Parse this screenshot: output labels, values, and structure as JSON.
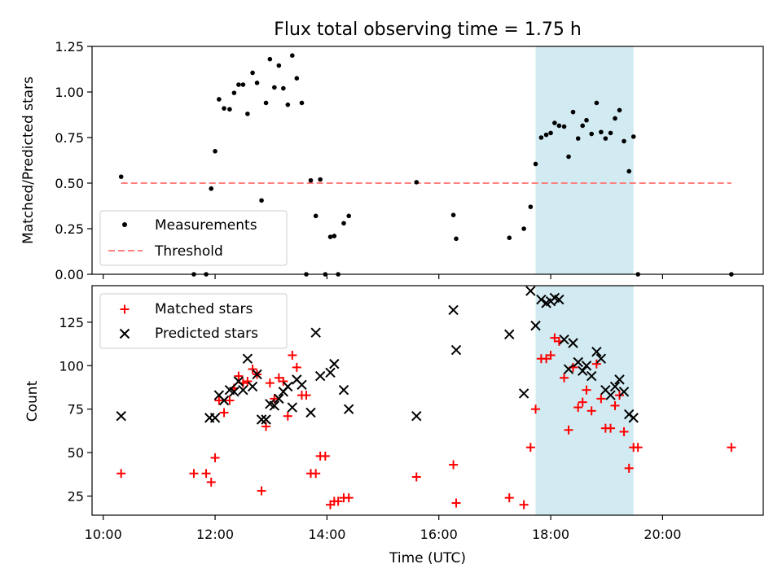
{
  "chart_data": [
    {
      "type": "scatter",
      "title": "Flux total observing time = 1.75 h",
      "xlabel": "",
      "ylabel": "Matched/Predicted stars",
      "xlim": [
        9.8,
        21.8
      ],
      "ylim": [
        0,
        1.25
      ],
      "x_ticks": [
        10,
        12,
        14,
        16,
        18,
        20
      ],
      "y_ticks": [
        0.0,
        0.25,
        0.5,
        0.75,
        1.0,
        1.25
      ],
      "y_tick_labels": [
        "0.00",
        "0.25",
        "0.50",
        "0.75",
        "1.00",
        "1.25"
      ],
      "shaded_region": {
        "x": [
          17.73,
          19.48
        ],
        "color": "#add8e6"
      },
      "grid": false,
      "legend_placement": "lower-left",
      "series": [
        {
          "name": "Measurements",
          "kind": "points",
          "color": "#000000",
          "points": [
            [
              10.32,
              0.535
            ],
            [
              11.62,
              0.0
            ],
            [
              11.84,
              0.0
            ],
            [
              11.93,
              0.47
            ],
            [
              12.0,
              0.675
            ],
            [
              12.07,
              0.96
            ],
            [
              12.16,
              0.91
            ],
            [
              12.26,
              0.905
            ],
            [
              12.34,
              0.995
            ],
            [
              12.42,
              1.04
            ],
            [
              12.5,
              1.04
            ],
            [
              12.58,
              0.88
            ],
            [
              12.67,
              1.105
            ],
            [
              12.75,
              1.05
            ],
            [
              12.83,
              0.405
            ],
            [
              12.91,
              0.94
            ],
            [
              12.98,
              1.18
            ],
            [
              13.06,
              1.025
            ],
            [
              13.14,
              1.145
            ],
            [
              13.22,
              1.02
            ],
            [
              13.3,
              0.93
            ],
            [
              13.38,
              1.2
            ],
            [
              13.46,
              1.075
            ],
            [
              13.55,
              0.94
            ],
            [
              13.63,
              0.0
            ],
            [
              13.71,
              0.515
            ],
            [
              13.8,
              0.32
            ],
            [
              13.88,
              0.52
            ],
            [
              13.97,
              0.0
            ],
            [
              14.06,
              0.205
            ],
            [
              14.13,
              0.21
            ],
            [
              14.2,
              0.0
            ],
            [
              14.3,
              0.28
            ],
            [
              14.39,
              0.32
            ],
            [
              15.6,
              0.505
            ],
            [
              16.26,
              0.325
            ],
            [
              16.31,
              0.195
            ],
            [
              17.26,
              0.2
            ],
            [
              17.52,
              0.25
            ],
            [
              17.64,
              0.37
            ],
            [
              17.73,
              0.605
            ],
            [
              17.83,
              0.75
            ],
            [
              17.92,
              0.765
            ],
            [
              18.0,
              0.775
            ],
            [
              18.07,
              0.83
            ],
            [
              18.15,
              0.815
            ],
            [
              18.24,
              0.81
            ],
            [
              18.32,
              0.645
            ],
            [
              18.4,
              0.89
            ],
            [
              18.49,
              0.745
            ],
            [
              18.57,
              0.815
            ],
            [
              18.64,
              0.845
            ],
            [
              18.73,
              0.77
            ],
            [
              18.82,
              0.94
            ],
            [
              18.9,
              0.78
            ],
            [
              18.98,
              0.745
            ],
            [
              19.07,
              0.775
            ],
            [
              19.15,
              0.855
            ],
            [
              19.23,
              0.9
            ],
            [
              19.31,
              0.73
            ],
            [
              19.4,
              0.565
            ],
            [
              19.48,
              0.755
            ],
            [
              19.56,
              0.0
            ],
            [
              21.23,
              0.0
            ]
          ]
        },
        {
          "name": "Threshold",
          "kind": "dashed-line",
          "color": "#ff7f7f",
          "x": [
            10.32,
            21.23
          ],
          "y": [
            0.5,
            0.5
          ]
        }
      ]
    },
    {
      "type": "scatter",
      "title": "",
      "xlabel": "Time (UTC)",
      "ylabel": "Count",
      "xlim": [
        9.8,
        21.8
      ],
      "ylim": [
        14,
        146
      ],
      "x_ticks": [
        10,
        12,
        14,
        16,
        18,
        20
      ],
      "x_tick_labels": [
        "10:00",
        "12:00",
        "14:00",
        "16:00",
        "18:00",
        "20:00"
      ],
      "y_ticks": [
        25,
        50,
        75,
        100,
        125
      ],
      "y_tick_labels": [
        "25",
        "50",
        "75",
        "100",
        "125"
      ],
      "shaded_region": {
        "x": [
          17.73,
          19.48
        ],
        "color": "#add8e6"
      },
      "grid": false,
      "legend_placement": "upper-left",
      "series": [
        {
          "name": "Matched stars",
          "marker": "plus",
          "color": "#ff0000",
          "points": [
            [
              10.32,
              38
            ],
            [
              11.62,
              38
            ],
            [
              11.84,
              38
            ],
            [
              11.93,
              33
            ],
            [
              12.0,
              47
            ],
            [
              12.07,
              80
            ],
            [
              12.16,
              73
            ],
            [
              12.26,
              80
            ],
            [
              12.34,
              87
            ],
            [
              12.42,
              94
            ],
            [
              12.5,
              90
            ],
            [
              12.58,
              91
            ],
            [
              12.67,
              98
            ],
            [
              12.75,
              95
            ],
            [
              12.83,
              28
            ],
            [
              12.91,
              65
            ],
            [
              12.98,
              90
            ],
            [
              13.06,
              81
            ],
            [
              13.14,
              93
            ],
            [
              13.22,
              91
            ],
            [
              13.3,
              71
            ],
            [
              13.38,
              106
            ],
            [
              13.46,
              99
            ],
            [
              13.55,
              83
            ],
            [
              13.63,
              83
            ],
            [
              13.71,
              38
            ],
            [
              13.8,
              38
            ],
            [
              13.88,
              48
            ],
            [
              13.97,
              48
            ],
            [
              14.06,
              20
            ],
            [
              14.13,
              22
            ],
            [
              14.2,
              22
            ],
            [
              14.3,
              24
            ],
            [
              14.39,
              24
            ],
            [
              15.6,
              36
            ],
            [
              16.26,
              43
            ],
            [
              16.31,
              21
            ],
            [
              17.26,
              24
            ],
            [
              17.52,
              20
            ],
            [
              17.64,
              53
            ],
            [
              17.73,
              75
            ],
            [
              17.83,
              104
            ],
            [
              17.92,
              104
            ],
            [
              18.0,
              106
            ],
            [
              18.07,
              116
            ],
            [
              18.15,
              114
            ],
            [
              18.24,
              93
            ],
            [
              18.32,
              63
            ],
            [
              18.4,
              99
            ],
            [
              18.49,
              76
            ],
            [
              18.57,
              79
            ],
            [
              18.64,
              86
            ],
            [
              18.73,
              74
            ],
            [
              18.82,
              101
            ],
            [
              18.9,
              81
            ],
            [
              18.98,
              64
            ],
            [
              19.07,
              64
            ],
            [
              19.15,
              77
            ],
            [
              19.23,
              83
            ],
            [
              19.31,
              62
            ],
            [
              19.4,
              41
            ],
            [
              19.48,
              53
            ],
            [
              19.56,
              53
            ],
            [
              21.23,
              53
            ]
          ]
        },
        {
          "name": "Predicted stars",
          "marker": "x",
          "color": "#000000",
          "points": [
            [
              10.32,
              71
            ],
            [
              11.9,
              70
            ],
            [
              12.0,
              70
            ],
            [
              12.07,
              83
            ],
            [
              12.16,
              80
            ],
            [
              12.26,
              86
            ],
            [
              12.34,
              85
            ],
            [
              12.42,
              91
            ],
            [
              12.5,
              86
            ],
            [
              12.58,
              104
            ],
            [
              12.67,
              88
            ],
            [
              12.75,
              95
            ],
            [
              12.83,
              69
            ],
            [
              12.91,
              69
            ],
            [
              12.98,
              78
            ],
            [
              13.06,
              77
            ],
            [
              13.14,
              81
            ],
            [
              13.22,
              85
            ],
            [
              13.3,
              88
            ],
            [
              13.38,
              76
            ],
            [
              13.46,
              92
            ],
            [
              13.55,
              89
            ],
            [
              13.71,
              73
            ],
            [
              13.8,
              119
            ],
            [
              13.88,
              94
            ],
            [
              14.06,
              96
            ],
            [
              14.13,
              101
            ],
            [
              14.3,
              86
            ],
            [
              14.39,
              75
            ],
            [
              15.6,
              71
            ],
            [
              16.26,
              132
            ],
            [
              16.31,
              109
            ],
            [
              17.26,
              118
            ],
            [
              17.52,
              84
            ],
            [
              17.64,
              143
            ],
            [
              17.73,
              123
            ],
            [
              17.83,
              138
            ],
            [
              17.92,
              136
            ],
            [
              18.0,
              137
            ],
            [
              18.07,
              139
            ],
            [
              18.15,
              138
            ],
            [
              18.24,
              115
            ],
            [
              18.32,
              98
            ],
            [
              18.4,
              113
            ],
            [
              18.49,
              102
            ],
            [
              18.57,
              97
            ],
            [
              18.64,
              100
            ],
            [
              18.73,
              94
            ],
            [
              18.82,
              108
            ],
            [
              18.9,
              104
            ],
            [
              18.98,
              86
            ],
            [
              19.07,
              83
            ],
            [
              19.15,
              88
            ],
            [
              19.23,
              92
            ],
            [
              19.31,
              85
            ],
            [
              19.4,
              72
            ],
            [
              19.48,
              70
            ]
          ]
        }
      ]
    }
  ]
}
